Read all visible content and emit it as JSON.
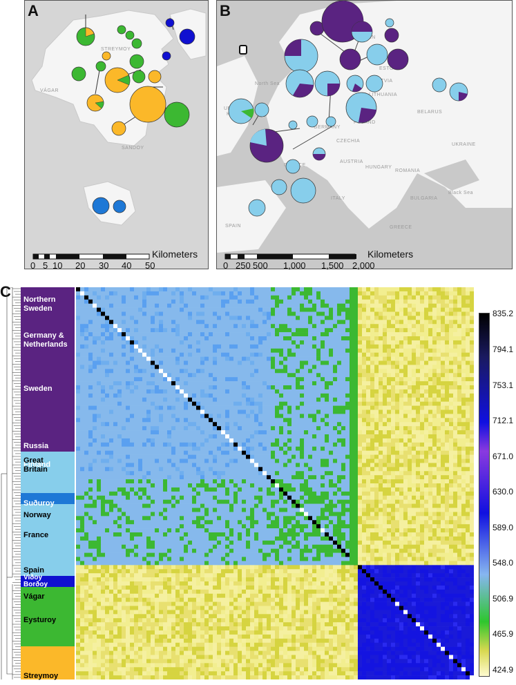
{
  "panels": {
    "a": {
      "label": "A",
      "scale_title": "Kilometers",
      "scale_ticks": [
        "0",
        "5",
        "10",
        "20",
        "30",
        "40",
        "50"
      ],
      "place_names": [
        "VÁGAR",
        "STREYMOY",
        "SANDOY"
      ]
    },
    "b": {
      "label": "B",
      "scale_title": "Kilometers",
      "scale_ticks": [
        "0",
        "250",
        "500",
        "1,000",
        "1,500",
        "2,000"
      ],
      "place_names": [
        "UNITED KINGDOM",
        "North Sea",
        "ESTONIA",
        "LATVIA",
        "LITHUANIA",
        "BELARUS",
        "POLAND",
        "GERMANY",
        "CZECHIA",
        "UKRAINE",
        "AUSTRIA",
        "HUNGARY",
        "ROMANIA",
        "FRANCE",
        "ITALY",
        "BULGARIA",
        "Black Sea",
        "SPAIN",
        "GREECE",
        "SWEDEN"
      ]
    },
    "c": {
      "label": "C",
      "row_groups": [
        {
          "name": "Northern Sweden",
          "lines": [
            "Northern",
            "Sweden"
          ],
          "color": "#5a2381"
        },
        {
          "name": "Germany & Netherlands",
          "lines": [
            "Germany &",
            "Netherlands"
          ],
          "color": "#5a2381"
        },
        {
          "name": "Sweden",
          "lines": [
            "Sweden"
          ],
          "color": "#5a2381"
        },
        {
          "name": "Russia",
          "lines": [
            "Russia"
          ],
          "color": "#5a2381"
        },
        {
          "name": "Finland",
          "lines": [
            "Finland"
          ],
          "color": "#5a2381"
        },
        {
          "name": "Great Britain",
          "lines": [
            "Great",
            "Britain"
          ],
          "color": "#87ceeb"
        },
        {
          "name": "Suðuroy",
          "lines": [
            "Suðuroy"
          ],
          "color": "#1e78d6"
        },
        {
          "name": "Norway",
          "lines": [
            "Norway"
          ],
          "color": "#87ceeb"
        },
        {
          "name": "France",
          "lines": [
            "France"
          ],
          "color": "#87ceeb"
        },
        {
          "name": "Spain",
          "lines": [
            "Spain"
          ],
          "color": "#87ceeb"
        },
        {
          "name": "Viðoy",
          "lines": [
            "Viðoy"
          ],
          "color": "#1010d0"
        },
        {
          "name": "Borðoy",
          "lines": [
            "Borðoy"
          ],
          "color": "#1010d0"
        },
        {
          "name": "Vágar",
          "lines": [
            "Vágar"
          ],
          "color": "#3cb832"
        },
        {
          "name": "Eysturoy",
          "lines": [
            "Eysturoy"
          ],
          "color": "#3cb832"
        },
        {
          "name": "Streymoy",
          "lines": [
            "Streymoy"
          ],
          "color": "#fbb829"
        }
      ],
      "colorbar_ticks": [
        "835.2",
        "794.1",
        "753.1",
        "712.1",
        "671.0",
        "630.0",
        "589.0",
        "548.0",
        "506.9",
        "465.9",
        "424.9"
      ]
    }
  },
  "chart_data": {
    "type": "heatmap",
    "title": "",
    "value_range": [
      424.9,
      835.2
    ],
    "colorbar_ticks": [
      835.2,
      794.1,
      753.1,
      712.1,
      671.0,
      630.0,
      589.0,
      548.0,
      506.9,
      465.9,
      424.9
    ],
    "colors": {
      "high": "#000000",
      "upper": "#1010e0",
      "mid": "#87b6f0",
      "lower": "#2ec62e",
      "low": "#fffbd0"
    },
    "blocks": [
      "Mainland Europe (purple/light blue groups)",
      "Faroe Islands (green/orange groups)"
    ]
  }
}
